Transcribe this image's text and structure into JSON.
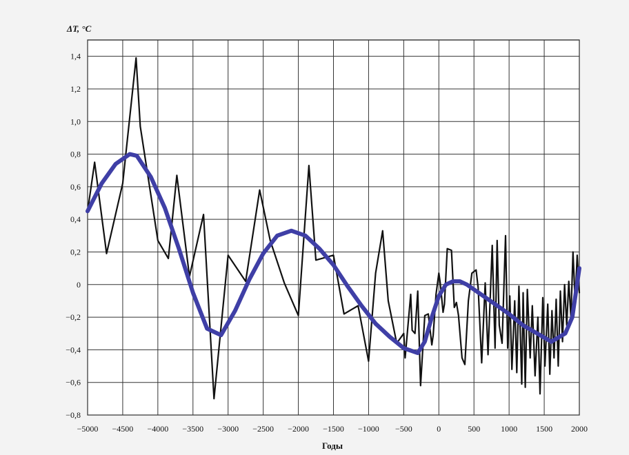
{
  "chart_data": {
    "type": "line",
    "title": "",
    "ylabel": "ΔT, °C",
    "xlabel": "Годы",
    "xlim": [
      -5000,
      2000
    ],
    "ylim": [
      -0.8,
      1.5
    ],
    "grid": true,
    "x_ticks": [
      -5000,
      -4500,
      -4000,
      -3500,
      -3000,
      -2500,
      -2000,
      -1500,
      -1000,
      -500,
      0,
      500,
      1000,
      1500,
      2000
    ],
    "x_tick_labels": [
      "−5000",
      "−4500",
      "−4000",
      "−3500",
      "−3000",
      "−2500",
      "−2000",
      "−1500",
      "−1000",
      "−500",
      "0",
      "500",
      "1000",
      "1500",
      "2000"
    ],
    "y_ticks": [
      -0.8,
      -0.6,
      -0.4,
      -0.2,
      0,
      0.2,
      0.4,
      0.6,
      0.8,
      1.0,
      1.2,
      1.4
    ],
    "y_tick_labels": [
      "−0,8",
      "−0,6",
      "−0,4",
      "−0,2",
      "0",
      "0,2",
      "0,4",
      "0,6",
      "0,8",
      "1,0",
      "1,2",
      "1,4"
    ],
    "colors": {
      "raw": "#111111",
      "smooth": "#3f3fa6",
      "grid": "#333333",
      "background": "#ffffff"
    },
    "series": [
      {
        "style": "raw",
        "x": [
          -5000,
          -4900,
          -4730,
          -4500,
          -4310,
          -4250,
          -4000,
          -3850,
          -3730,
          -3550,
          -3350,
          -3200,
          -3000,
          -2750,
          -2550,
          -2400,
          -2200,
          -2000,
          -1850,
          -1750,
          -1500,
          -1350,
          -1150,
          -1000,
          -900,
          -800,
          -720,
          -600,
          -500,
          -480,
          -400,
          -380,
          -340,
          -300,
          -260,
          -200,
          -150,
          -100,
          -80,
          -40,
          0,
          20,
          60,
          80,
          120,
          180,
          220,
          250,
          280,
          330,
          370,
          420,
          470,
          530,
          560,
          610,
          660,
          700,
          760,
          800,
          830,
          860,
          900,
          950,
          980,
          1010,
          1040,
          1080,
          1110,
          1140,
          1180,
          1200,
          1230,
          1260,
          1300,
          1330,
          1370,
          1410,
          1440,
          1480,
          1510,
          1550,
          1580,
          1610,
          1640,
          1670,
          1700,
          1730,
          1760,
          1790,
          1820,
          1850,
          1880,
          1910,
          1940,
          1970,
          2000
        ],
        "y": [
          0.45,
          0.75,
          0.19,
          0.62,
          1.39,
          0.97,
          0.27,
          0.16,
          0.67,
          0.05,
          0.43,
          -0.7,
          0.18,
          0.02,
          0.58,
          0.27,
          0.01,
          -0.19,
          0.73,
          0.15,
          0.18,
          -0.18,
          -0.13,
          -0.47,
          0.07,
          0.33,
          -0.1,
          -0.36,
          -0.3,
          -0.45,
          -0.06,
          -0.28,
          -0.3,
          -0.04,
          -0.62,
          -0.19,
          -0.18,
          -0.37,
          -0.31,
          -0.06,
          0.07,
          0.01,
          -0.17,
          -0.12,
          0.22,
          0.21,
          -0.14,
          -0.11,
          -0.19,
          -0.45,
          -0.49,
          -0.1,
          0.07,
          0.09,
          -0.02,
          -0.48,
          0.01,
          -0.43,
          0.24,
          -0.39,
          0.27,
          -0.25,
          -0.36,
          0.3,
          -0.39,
          -0.07,
          -0.52,
          -0.1,
          -0.54,
          -0.01,
          -0.61,
          -0.05,
          -0.63,
          -0.03,
          -0.45,
          -0.13,
          -0.56,
          -0.2,
          -0.67,
          -0.08,
          -0.5,
          -0.12,
          -0.55,
          -0.16,
          -0.45,
          -0.09,
          -0.5,
          -0.04,
          -0.35,
          0.0,
          -0.25,
          0.02,
          -0.2,
          0.2,
          -0.1,
          0.18,
          -0.05
        ]
      },
      {
        "style": "smooth",
        "x": [
          -5000,
          -4800,
          -4600,
          -4400,
          -4300,
          -4100,
          -3900,
          -3700,
          -3500,
          -3300,
          -3100,
          -2900,
          -2700,
          -2500,
          -2300,
          -2100,
          -1900,
          -1700,
          -1500,
          -1300,
          -1100,
          -900,
          -700,
          -500,
          -300,
          -200,
          -100,
          0,
          100,
          200,
          300,
          400,
          600,
          800,
          1000,
          1200,
          1400,
          1600,
          1800,
          1900,
          2000
        ],
        "y": [
          0.45,
          0.62,
          0.74,
          0.8,
          0.79,
          0.66,
          0.47,
          0.22,
          -0.05,
          -0.27,
          -0.31,
          -0.16,
          0.03,
          0.19,
          0.3,
          0.33,
          0.3,
          0.22,
          0.12,
          -0.01,
          -0.13,
          -0.24,
          -0.32,
          -0.39,
          -0.42,
          -0.35,
          -0.2,
          -0.07,
          0.0,
          0.02,
          0.02,
          0.0,
          -0.06,
          -0.12,
          -0.18,
          -0.25,
          -0.3,
          -0.35,
          -0.3,
          -0.2,
          0.1
        ]
      }
    ]
  }
}
